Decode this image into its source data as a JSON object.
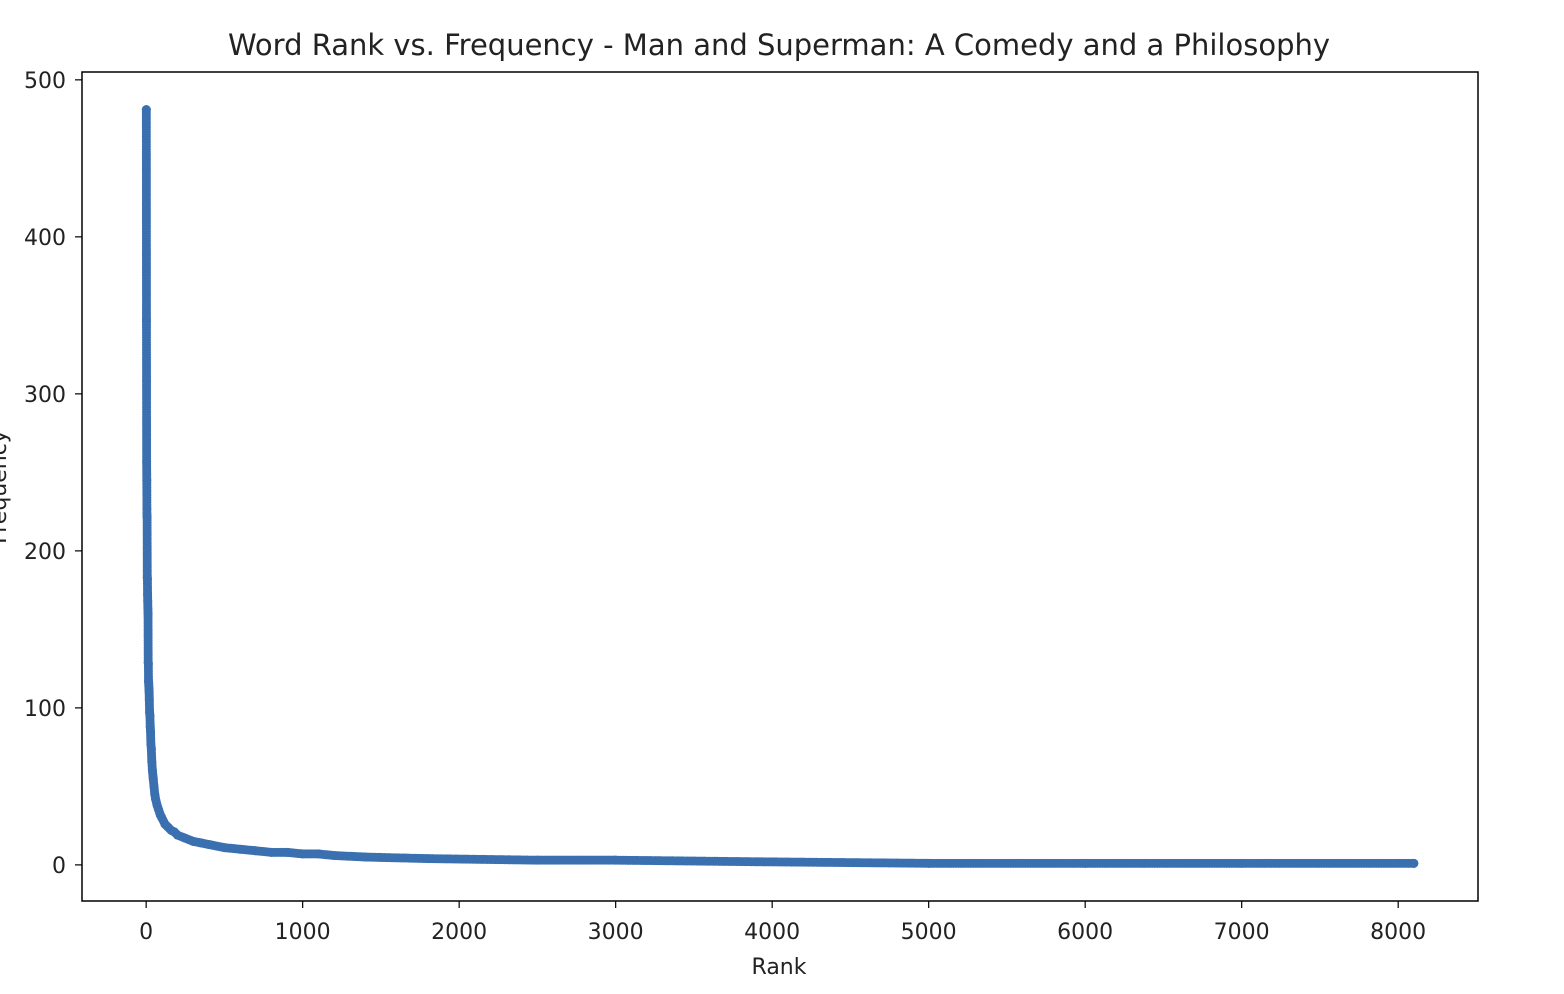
{
  "chart_data": {
    "type": "line",
    "title": "Word Rank vs. Frequency - Man and Superman: A Comedy and a Philosophy",
    "xlabel": "Rank",
    "ylabel": "Frequency",
    "xlim": [
      -410,
      8510
    ],
    "ylim": [
      -23,
      505
    ],
    "xticks": [
      0,
      1000,
      2000,
      3000,
      4000,
      5000,
      6000,
      7000,
      8000
    ],
    "yticks": [
      0,
      100,
      200,
      300,
      400,
      500
    ],
    "grid": false,
    "marker": "circle",
    "series_color": "#3a6fb0",
    "series": [
      {
        "x": [
          1,
          2,
          3,
          4,
          5,
          6,
          7,
          8,
          9,
          10,
          11,
          12,
          13,
          14,
          15,
          16,
          17,
          18,
          19,
          20,
          22,
          24,
          26,
          28,
          30,
          33,
          36,
          40,
          45,
          50,
          55,
          60,
          70,
          80,
          90,
          100,
          120,
          140,
          160,
          180,
          200,
          250,
          300,
          350,
          400,
          500,
          600,
          700,
          800,
          900,
          1000,
          1100,
          1200,
          1400,
          1800,
          2500,
          3000,
          3900,
          5000,
          6000,
          7000,
          8100
        ],
        "y": [
          481,
          347,
          257,
          245,
          223,
          221,
          183,
          182,
          172,
          168,
          163,
          160,
          129,
          128,
          117,
          116,
          114,
          112,
          110,
          105,
          97,
          95,
          88,
          85,
          77,
          74,
          66,
          60,
          55,
          50,
          45,
          42,
          38,
          35,
          32,
          30,
          26,
          24,
          22,
          21,
          19,
          17,
          15,
          14,
          13,
          11,
          10,
          9,
          8,
          8,
          7,
          7,
          6,
          5,
          4,
          3,
          3,
          2,
          1,
          1,
          1,
          1
        ]
      }
    ]
  }
}
